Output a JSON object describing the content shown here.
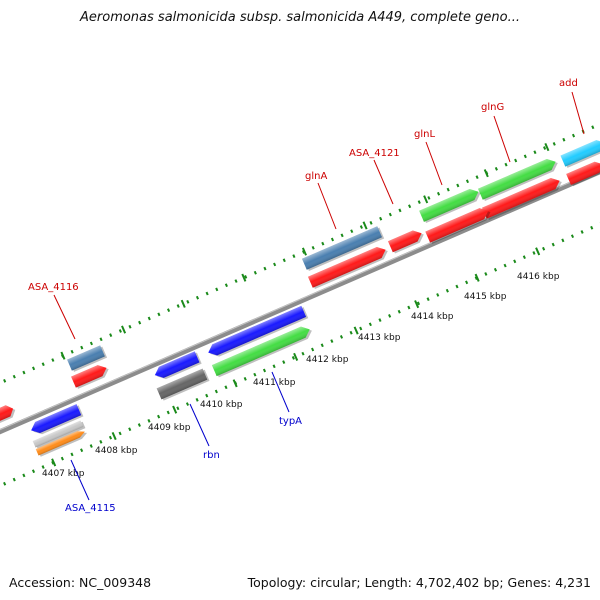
{
  "title": "Aeromonas salmonicida subsp. salmonicida A449, complete geno...",
  "accession": "Accession: NC_009348",
  "summary": "Topology: circular; Length: 4,702,402 bp; Genes: 4,231",
  "kbp_labels": [
    "4407 kbp",
    "4408 kbp",
    "4409 kbp",
    "4410 kbp",
    "4411 kbp",
    "4412 kbp",
    "4413 kbp",
    "4414 kbp",
    "4415 kbp",
    "4416 kbp"
  ],
  "gene_labels": {
    "add": "add",
    "glnG": "glnG",
    "glnL": "glnL",
    "ASA_4121": "ASA_4121",
    "glnA": "glnA",
    "ASA_4116": "ASA_4116",
    "typA": "typA",
    "rbn": "rbn",
    "ASA_4115": "ASA_4115"
  },
  "colors": {
    "backbone": "#8c8c8c",
    "tick": "#1a8a1a",
    "forward_label": "#cc0000",
    "reverse_label": "#0000cc",
    "red": "#ff1a1a",
    "blue": "#1a1aff",
    "green": "#44dd44",
    "steel": "#4a7fb0",
    "gray": "#666666",
    "orange": "#ff8c1a",
    "silver": "#c8c8c8",
    "cyan": "#22ccff"
  }
}
